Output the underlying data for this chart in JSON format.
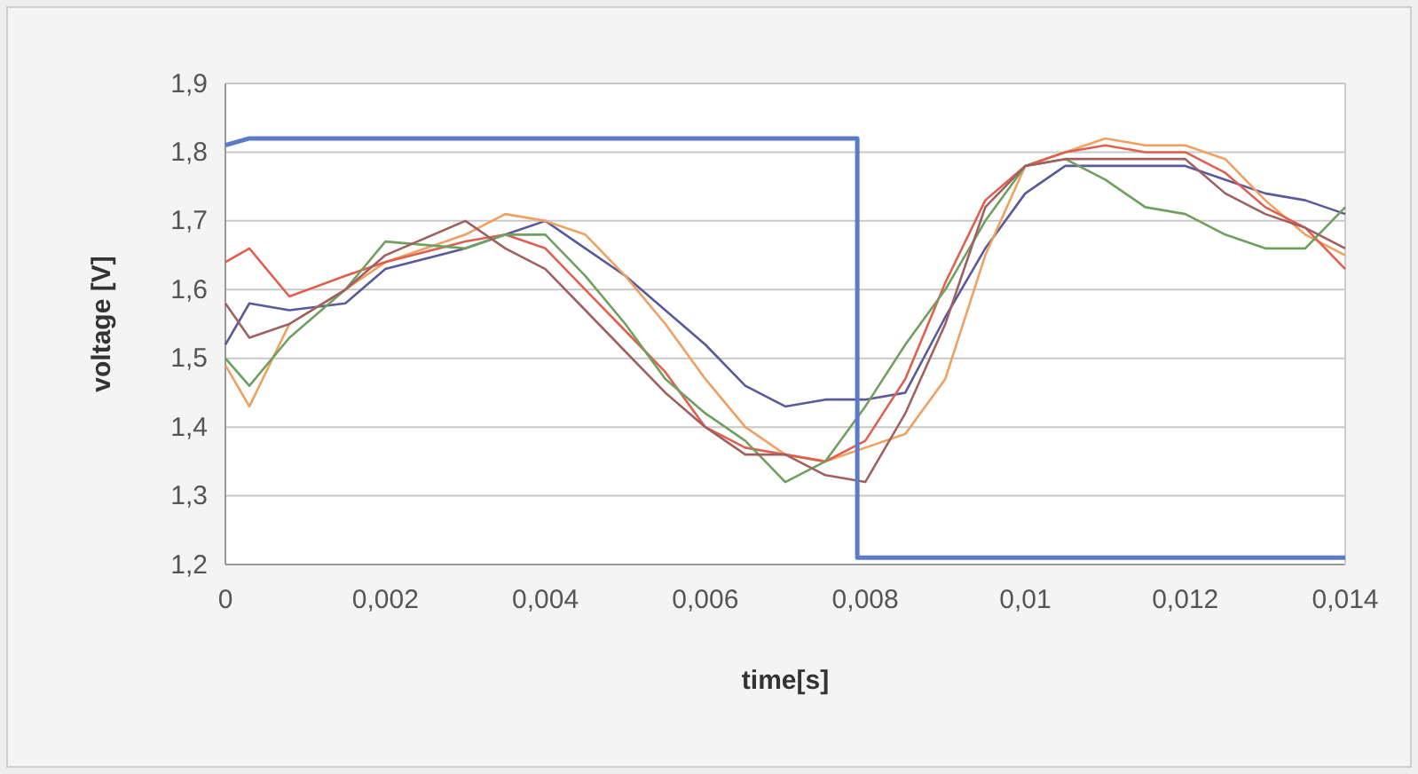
{
  "chart_data": {
    "type": "line",
    "xlabel": "time[s]",
    "ylabel": "voltage [V]",
    "xlim": [
      0,
      0.014
    ],
    "ylim": [
      1.2,
      1.9
    ],
    "xticks": [
      0,
      {
        "value": 0.002,
        "label": "0,002"
      },
      {
        "value": 0.004,
        "label": "0,004"
      },
      {
        "value": 0.006,
        "label": "0,006"
      },
      {
        "value": 0.008,
        "label": "0,008"
      },
      {
        "value": 0.01,
        "label": "0,01"
      },
      {
        "value": 0.012,
        "label": "0,012"
      },
      {
        "value": 0.014,
        "label": "0,014"
      }
    ],
    "yticks": [
      {
        "value": 1.2,
        "label": "1,2"
      },
      {
        "value": 1.3,
        "label": "1,3"
      },
      {
        "value": 1.4,
        "label": "1,4"
      },
      {
        "value": 1.5,
        "label": "1,5"
      },
      {
        "value": 1.6,
        "label": "1,6"
      },
      {
        "value": 1.7,
        "label": "1,7"
      },
      {
        "value": 1.8,
        "label": "1,8"
      },
      {
        "value": 1.9,
        "label": "1,9"
      }
    ],
    "grid": "y",
    "x": [
      0,
      0.0003,
      0.0008,
      0.0015,
      0.002,
      0.003,
      0.0035,
      0.004,
      0.0045,
      0.005,
      0.0055,
      0.006,
      0.0065,
      0.007,
      0.0075,
      0.008,
      0.0085,
      0.009,
      0.0095,
      0.01,
      0.0105,
      0.011,
      0.0115,
      0.012,
      0.0125,
      0.013,
      0.0135,
      0.014
    ],
    "series": [
      {
        "color": "#5a5a9a",
        "values": [
          1.52,
          1.58,
          1.57,
          1.58,
          1.63,
          1.66,
          1.68,
          1.7,
          1.66,
          1.62,
          1.57,
          1.52,
          1.46,
          1.43,
          1.44,
          1.44,
          1.45,
          1.56,
          1.66,
          1.74,
          1.78,
          1.78,
          1.78,
          1.78,
          1.76,
          1.74,
          1.73,
          1.71
        ]
      },
      {
        "color": "#f0a060",
        "values": [
          1.49,
          1.43,
          1.55,
          1.6,
          1.64,
          1.68,
          1.71,
          1.7,
          1.68,
          1.62,
          1.55,
          1.47,
          1.4,
          1.36,
          1.35,
          1.37,
          1.39,
          1.47,
          1.65,
          1.78,
          1.8,
          1.82,
          1.81,
          1.81,
          1.79,
          1.73,
          1.68,
          1.65
        ]
      },
      {
        "color": "#e06050",
        "values": [
          1.64,
          1.66,
          1.59,
          1.62,
          1.64,
          1.67,
          1.68,
          1.66,
          1.6,
          1.54,
          1.48,
          1.4,
          1.37,
          1.36,
          1.35,
          1.38,
          1.47,
          1.61,
          1.73,
          1.78,
          1.8,
          1.81,
          1.8,
          1.8,
          1.77,
          1.72,
          1.69,
          1.63
        ]
      },
      {
        "color": "#70a060",
        "values": [
          1.5,
          1.46,
          1.53,
          1.6,
          1.67,
          1.66,
          1.68,
          1.68,
          1.62,
          1.55,
          1.47,
          1.42,
          1.38,
          1.32,
          1.35,
          1.43,
          1.52,
          1.6,
          1.7,
          1.78,
          1.79,
          1.76,
          1.72,
          1.71,
          1.68,
          1.66,
          1.66,
          1.72
        ]
      },
      {
        "color": "#a06060",
        "values": [
          1.58,
          1.53,
          1.55,
          1.6,
          1.65,
          1.7,
          1.66,
          1.63,
          1.57,
          1.51,
          1.45,
          1.4,
          1.36,
          1.36,
          1.33,
          1.32,
          1.42,
          1.55,
          1.72,
          1.78,
          1.79,
          1.79,
          1.79,
          1.79,
          1.74,
          1.71,
          1.69,
          1.66
        ]
      },
      {
        "color": "#5b7bc8",
        "x": [
          0,
          0.0003,
          0.0079,
          0.0079,
          0.014
        ],
        "values": [
          1.81,
          1.82,
          1.82,
          1.21,
          1.21
        ]
      }
    ]
  }
}
